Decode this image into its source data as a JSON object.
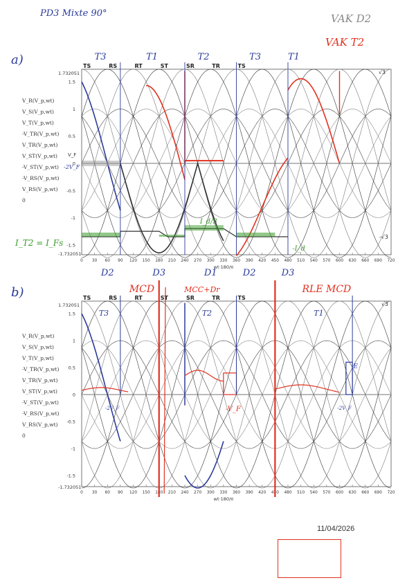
{
  "header": {
    "title": "PD3 Mixte 90°",
    "vak_d2": "VAK D2",
    "vak_t2": "VAK T2"
  },
  "panel_a": {
    "label": "a)",
    "phase_labels": [
      "TS",
      "RS",
      "RT",
      "ST",
      "SR",
      "TR",
      "TS"
    ],
    "thyristor_labels": [
      "T3",
      "T1",
      "T2",
      "T3",
      "T1"
    ],
    "diode_labels": [
      "D2",
      "D3",
      "D1",
      "D2",
      "D3"
    ],
    "legend": [
      "V_R(V_p,wt)",
      "V_S(V_p,wt)",
      "V_T(V_p,wt)",
      "-V_TR(V_p,wt)",
      "V_TR(V_p,wt)",
      "V_ST(V_p,wt)",
      "-V_ST(V_p,wt)",
      "-V_RS(V_p,wt)",
      "V_RS(V_p,wt)",
      "0"
    ],
    "y_ticks": [
      "1.5",
      "1",
      "0.5",
      "0",
      "-0.5",
      "-1",
      "-1.5"
    ],
    "y_top": "1.732051",
    "y_bottom": "-1.732051",
    "x_ticks": [
      "0",
      "30",
      "60",
      "90",
      "120",
      "150",
      "180",
      "210",
      "240",
      "270",
      "300",
      "330",
      "360",
      "390",
      "420",
      "450",
      "480",
      "510",
      "540",
      "570",
      "600",
      "630",
      "660",
      "690",
      "720"
    ],
    "x_label": "wt·180/π",
    "vf_label": "V_F",
    "neg_vf_label": "-2V_F",
    "current_label": "I_T2 = I_Fs",
    "id_label": "-I_d",
    "i_ratio": "I_d/3",
    "sqrt3": "√3",
    "neg_sqrt3": "-√3"
  },
  "panel_b": {
    "label": "b)",
    "modes": [
      "MCD",
      "MCC+Dr",
      "RLE MCD"
    ],
    "phase_labels": [
      "TS",
      "RS",
      "RT",
      "ST",
      "SR",
      "TR",
      "TS"
    ],
    "thyristor_labels": [
      "T3",
      "T2",
      "T1"
    ],
    "legend": [
      "V_R(V_p,wt)",
      "V_S(V_p,wt)",
      "V_T(V_p,wt)",
      "-V_TR(V_p,wt)",
      "V_TR(V_p,wt)",
      "V_ST(V_p,wt)",
      "-V_ST(V_p,wt)",
      "-V_RS(V_p,wt)",
      "V_RS(V_p,wt)",
      "0"
    ],
    "y_ticks": [
      "1.5",
      "1",
      "0.5",
      "0",
      "-0.5",
      "-1",
      "-1.5"
    ],
    "y_top": "1.732051",
    "y_bottom": "-1.732051",
    "x_ticks": [
      "0",
      "30",
      "60",
      "90",
      "120",
      "150",
      "180",
      "210",
      "240",
      "270",
      "300",
      "330",
      "360",
      "390",
      "420",
      "450",
      "480",
      "510",
      "540",
      "570",
      "600",
      "630",
      "660",
      "690",
      "720"
    ],
    "x_label": "wt·180/π",
    "vf_label": "-V_F",
    "neg2vf": "-2V_F",
    "e_label": "E",
    "sqrt3": "√3"
  },
  "footer": {
    "date": "11/04/2026"
  },
  "colors": {
    "red": "#e0301e",
    "blue": "#2a3a9a",
    "green": "#3a9a2a",
    "black": "#222222"
  }
}
